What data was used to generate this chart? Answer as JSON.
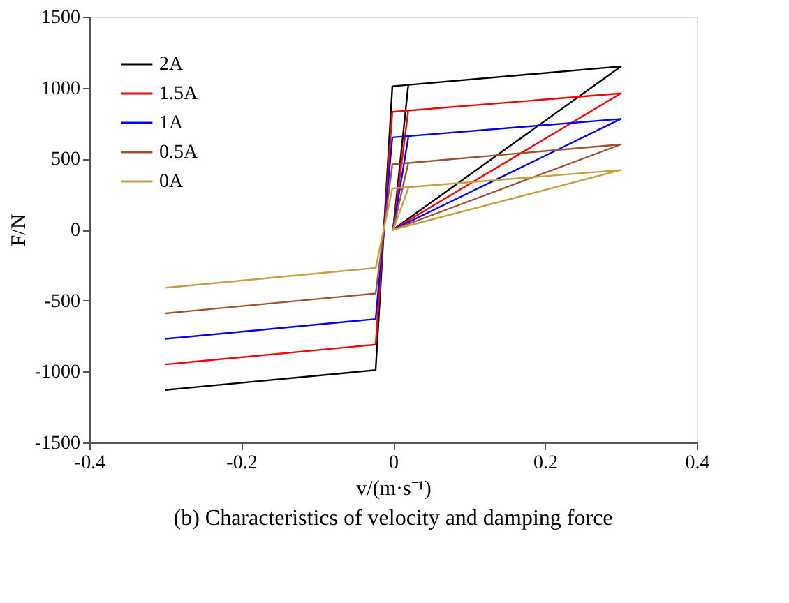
{
  "chart_data": {
    "type": "line",
    "xlabel": "v/(m·s⁻¹)",
    "ylabel": "F/N",
    "annotations": [
      "(b) Characteristics of velocity and damping force"
    ],
    "xlim": [
      -0.4,
      0.4
    ],
    "xticks": [
      -0.4,
      -0.2,
      0,
      0.2,
      0.4
    ],
    "ylim": [
      -1500,
      1500
    ],
    "yticks": [
      -1500,
      -1000,
      -500,
      0,
      500,
      1000,
      1500
    ],
    "grid": false,
    "legend": "top left",
    "marker": "none",
    "line_style": "solid",
    "x": [
      -0.3,
      -0.023,
      -0.001,
      0.3,
      0.0,
      0.02
    ],
    "series": [
      {
        "name": "2A",
        "color": "#000000",
        "values": [
          -1130,
          -990,
          1010,
          1150,
          0,
          1020
        ]
      },
      {
        "name": "1.5A",
        "color": "#ff0000",
        "values": [
          -950,
          -810,
          830,
          960,
          0,
          840
        ]
      },
      {
        "name": "1A",
        "color": "#0000ff",
        "values": [
          -770,
          -630,
          650,
          780,
          0,
          650
        ]
      },
      {
        "name": "0.5A",
        "color": "#a0522d",
        "values": [
          -590,
          -450,
          460,
          600,
          0,
          470
        ]
      },
      {
        "name": "0A",
        "color": "#c8a040",
        "values": [
          -410,
          -270,
          290,
          420,
          0,
          290
        ]
      }
    ]
  }
}
